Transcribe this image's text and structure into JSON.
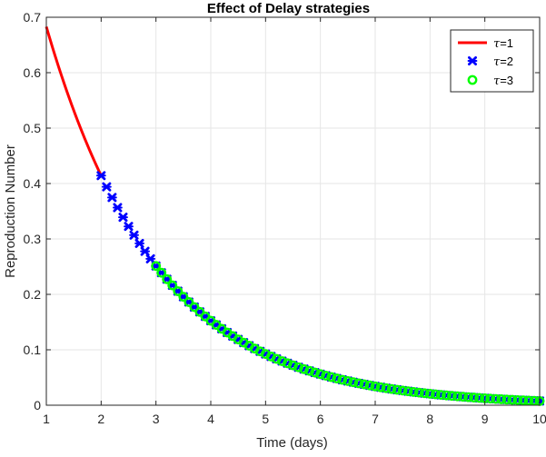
{
  "chart_data": {
    "type": "line",
    "title": "Effect of Delay strategies",
    "xlabel": "Time (days)",
    "ylabel": "Reproduction Number",
    "xlim": [
      1,
      10
    ],
    "ylim": [
      0,
      0.7
    ],
    "xticks": [
      "1",
      "2",
      "3",
      "4",
      "5",
      "6",
      "7",
      "8",
      "9",
      "10"
    ],
    "yticks": [
      "0",
      "0.1",
      "0.2",
      "0.3",
      "0.4",
      "0.5",
      "0.6",
      "0.7"
    ],
    "grid": true,
    "legend_position": "top-right",
    "model": {
      "form": "exponential-decay",
      "R0_at_t1": 0.683,
      "decay_rate_per_day": 0.5
    },
    "series": [
      {
        "name": "τ=1",
        "style": "solid line",
        "color": "#ff0000",
        "x_range": [
          1,
          2
        ],
        "x": [
          1.0,
          1.25,
          1.5,
          1.75,
          2.0
        ],
        "y": [
          0.683,
          0.603,
          0.532,
          0.47,
          0.414
        ]
      },
      {
        "name": "τ=2",
        "style": "x markers",
        "color": "#0000ff",
        "x_range": [
          2,
          10
        ],
        "marker_step": 0.1,
        "x": [
          2,
          3,
          4,
          5,
          6,
          7,
          8,
          9,
          10
        ],
        "y": [
          0.414,
          0.251,
          0.152,
          0.092,
          0.056,
          0.034,
          0.021,
          0.013,
          0.008
        ]
      },
      {
        "name": "τ=3",
        "style": "circle markers",
        "color": "#00ff00",
        "x_range": [
          3,
          10
        ],
        "marker_step": 0.1,
        "x": [
          3,
          4,
          5,
          6,
          7,
          8,
          9,
          10
        ],
        "y": [
          0.251,
          0.152,
          0.092,
          0.056,
          0.034,
          0.021,
          0.013,
          0.008
        ]
      }
    ],
    "legend": [
      {
        "tau": "τ",
        "value": "=1"
      },
      {
        "tau": "τ",
        "value": "=2"
      },
      {
        "tau": "τ",
        "value": "=3"
      }
    ]
  }
}
